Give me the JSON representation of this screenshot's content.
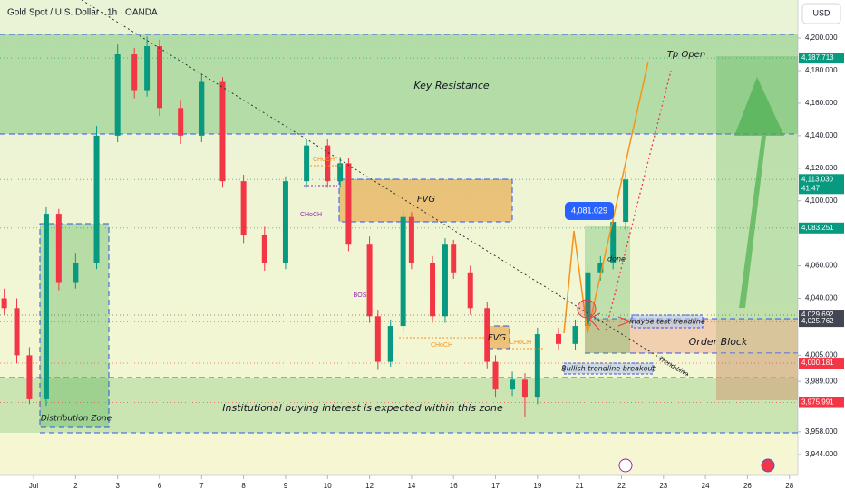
{
  "header": {
    "symbol": "Gold Spot / U.S. Dollar · 1h · OANDA",
    "currency": "USD"
  },
  "chart_data": {
    "type": "candlestick",
    "grid": false,
    "up_color": "#089981",
    "down_color": "#f23645",
    "xlim": [
      -0.8,
      18.2
    ],
    "ylim": [
      3931.2,
      4223.4
    ],
    "xticks": [
      {
        "value": 0,
        "label": "Jul"
      },
      {
        "value": 1,
        "label": "2"
      },
      {
        "value": 2,
        "label": "3"
      },
      {
        "value": 3,
        "label": "6"
      },
      {
        "value": 4,
        "label": "7"
      },
      {
        "value": 5,
        "label": "8"
      },
      {
        "value": 6,
        "label": "9"
      },
      {
        "value": 7,
        "label": "10"
      },
      {
        "value": 8,
        "label": "12"
      },
      {
        "value": 9,
        "label": "14"
      },
      {
        "value": 10,
        "label": "16"
      },
      {
        "value": 11,
        "label": "17"
      },
      {
        "value": 12,
        "label": "19"
      },
      {
        "value": 13,
        "label": "21"
      },
      {
        "value": 14,
        "label": "22"
      },
      {
        "value": 15,
        "label": "23"
      },
      {
        "value": 16,
        "label": "24"
      },
      {
        "value": 17,
        "label": "26"
      },
      {
        "value": 18,
        "label": "28"
      }
    ],
    "yticks": [
      {
        "value": 4200,
        "label": "4,200.000"
      },
      {
        "value": 4180,
        "label": "4,180.000"
      },
      {
        "value": 4160,
        "label": "4,160.000"
      },
      {
        "value": 4140,
        "label": "4,140.000"
      },
      {
        "value": 4120,
        "label": "4,120.000"
      },
      {
        "value": 4100,
        "label": "4,100.000"
      },
      {
        "value": 4060,
        "label": "4,060.000"
      },
      {
        "value": 4040,
        "label": "4,040.000"
      },
      {
        "value": 4005,
        "label": "4,005.000"
      },
      {
        "value": 3989,
        "label": "3,989.000"
      },
      {
        "value": 3958,
        "label": "3,958.000"
      },
      {
        "value": 3944,
        "label": "3,944.000"
      }
    ],
    "x": [
      -0.7,
      -0.4,
      -0.1,
      0.3,
      0.6,
      1.0,
      1.5,
      2.0,
      2.4,
      2.7,
      3.0,
      3.5,
      4.0,
      4.5,
      5.0,
      5.5,
      6.0,
      6.5,
      7.0,
      7.3,
      7.5,
      8.0,
      8.2,
      8.5,
      8.8,
      9.0,
      9.5,
      9.8,
      10.0,
      10.4,
      10.8,
      11.0,
      11.4,
      11.7,
      12.0,
      12.5,
      12.9,
      13.2,
      13.5,
      13.8,
      14.1
    ],
    "open": [
      4040,
      4034,
      4005,
      3978,
      4092,
      4050,
      4062,
      4140,
      4190,
      4168,
      4195,
      4157,
      4140,
      4173,
      4112,
      4079,
      4062,
      4112,
      4134,
      4112,
      4123,
      4073,
      4029,
      4001,
      4023,
      4090,
      4062,
      4029,
      4073,
      4056,
      4034,
      4001,
      3984,
      3990,
      3979,
      4018,
      4012,
      4023,
      4056,
      4062,
      4087
    ],
    "high": [
      4046,
      4040,
      4010,
      4096,
      4095,
      4068,
      4146,
      4196,
      4194,
      4201,
      4199,
      4162,
      4178,
      4176,
      4116,
      4084,
      4115,
      4138,
      4138,
      4127,
      4126,
      4078,
      4033,
      4027,
      4094,
      4093,
      4066,
      4077,
      4076,
      4060,
      4038,
      4005,
      3995,
      3994,
      4022,
      4022,
      4027,
      4060,
      4066,
      4090,
      4118
    ],
    "low": [
      4030,
      4000,
      3975,
      3974,
      4045,
      4046,
      4058,
      4136,
      4163,
      4164,
      4152,
      4135,
      4136,
      4108,
      4074,
      4057,
      4058,
      4108,
      4108,
      4108,
      4069,
      4025,
      3996,
      3998,
      4019,
      4058,
      4025,
      4025,
      4052,
      4030,
      3997,
      3979,
      3980,
      3967,
      3975,
      4008,
      4008,
      4019,
      4051,
      4058,
      4082
    ],
    "close": [
      4034,
      4005,
      3978,
      4092,
      4050,
      4062,
      4140,
      4190,
      4168,
      4195,
      4157,
      4140,
      4173,
      4112,
      4079,
      4062,
      4112,
      4134,
      4112,
      4123,
      4073,
      4029,
      4001,
      4023,
      4090,
      4062,
      4029,
      4073,
      4056,
      4034,
      4001,
      3984,
      3990,
      3979,
      4018,
      4012,
      4023,
      4056,
      4062,
      4087,
      4113.03
    ],
    "price_tags": [
      {
        "value": 4187.713,
        "label": "4,187.713",
        "color": "#089981"
      },
      {
        "value": 4113.03,
        "label": "4,113.030",
        "countdown": "41:47",
        "color": "#089981"
      },
      {
        "value": 4083.251,
        "label": "4,083.251",
        "color": "#089981"
      },
      {
        "value": 4029.692,
        "label": "4,029.692",
        "color": "#434651"
      },
      {
        "value": 4025.762,
        "label": "4,025.762",
        "color": "#434651"
      },
      {
        "value": 4000.181,
        "label": "4,000.181",
        "color": "#f23645"
      },
      {
        "value": 3975.991,
        "label": "3,975.991",
        "color": "#f23645"
      }
    ]
  },
  "annotations": {
    "key_resistance": "Key Resistance",
    "tp_open": "Tp Open",
    "fvg_upper": "FVG",
    "fvg_lower": "FVG",
    "choch_1": "CHoCH",
    "choch_2": "CHoCH",
    "bos": "BOS",
    "choch_3": "CHoCH",
    "choch_4": "CHoCH",
    "high_label": "4,081.029",
    "done": "done",
    "test_trendline": "maybe test trendline",
    "order_block": "Order Block",
    "trend_line": "Trend Line",
    "breakout": "Bullish trendline breakout",
    "institutional": "Institutional buying interest is expected within this zone",
    "distribution": "Distribution Zone"
  }
}
